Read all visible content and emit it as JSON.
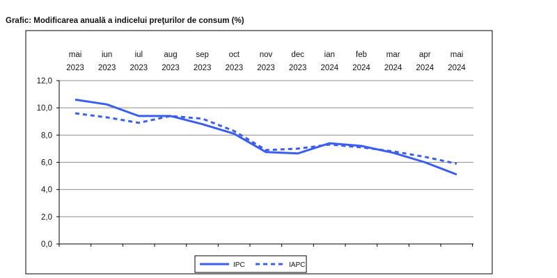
{
  "chart_title": "Grafic: Modificarea anuală a indicelui preţurilor de consum (%)",
  "chart_data": {
    "type": "line",
    "title": "Grafic: Modificarea anuală a indicelui preţurilor de consum (%)",
    "categories": [
      [
        "mai",
        "2023"
      ],
      [
        "iun",
        "2023"
      ],
      [
        "iul",
        "2023"
      ],
      [
        "aug",
        "2023"
      ],
      [
        "sep",
        "2023"
      ],
      [
        "oct",
        "2023"
      ],
      [
        "nov",
        "2023"
      ],
      [
        "dec",
        "2023"
      ],
      [
        "ian",
        "2024"
      ],
      [
        "feb",
        "2024"
      ],
      [
        "mar",
        "2024"
      ],
      [
        "apr",
        "2024"
      ],
      [
        "mai",
        "2024"
      ]
    ],
    "y_ticks": [
      "0,0",
      "2,0",
      "4,0",
      "6,0",
      "8,0",
      "10,0",
      "12,0"
    ],
    "ylim": [
      0,
      12
    ],
    "grid": true,
    "legend_position": "bottom",
    "series": [
      {
        "name": "IPC",
        "style": "solid",
        "color": "#3a5ef0",
        "values": [
          10.6,
          10.25,
          9.4,
          9.4,
          8.8,
          8.1,
          6.75,
          6.65,
          7.4,
          7.2,
          6.7,
          6.0,
          5.1
        ]
      },
      {
        "name": "IAPC",
        "style": "dashed",
        "color": "#3a5ef0",
        "values": [
          9.6,
          9.3,
          8.9,
          9.4,
          9.2,
          8.3,
          6.9,
          7.0,
          7.3,
          7.1,
          6.8,
          6.4,
          5.9
        ]
      }
    ]
  }
}
